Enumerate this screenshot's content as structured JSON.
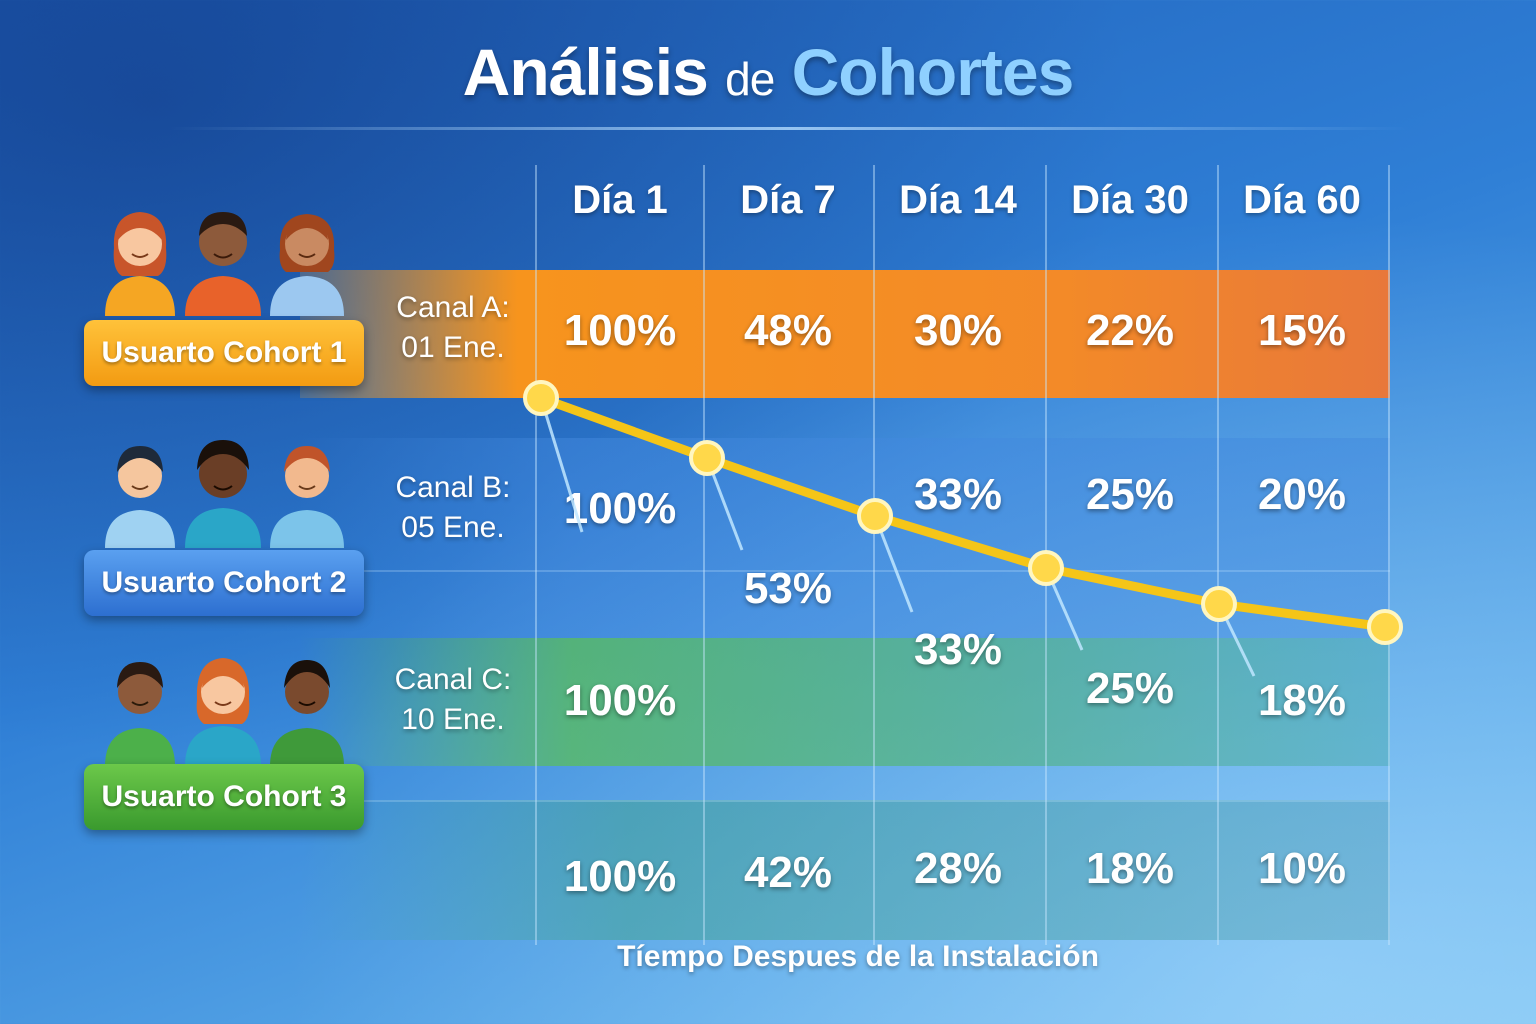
{
  "title": {
    "part1": "Análisis",
    "part2": "de",
    "part3": "Cohortes"
  },
  "columns": [
    "Día 1",
    "Día 7",
    "Día 14",
    "Día 30",
    "Día 60"
  ],
  "cohorts": [
    {
      "tag": "Usuarto Cohort 1",
      "channel": "Canal A:",
      "date": "01 Ene.",
      "color": "#f7941d"
    },
    {
      "tag": "Usuarto Cohort 2",
      "channel": "Canal B:",
      "date": "05 Ene.",
      "color": "#3b82e0"
    },
    {
      "tag": "Usuarto Cohort 3",
      "channel": "Canal C:",
      "date": "10 Ene.",
      "color": "#4caf3a"
    }
  ],
  "grid": {
    "row1": [
      "100%",
      "48%",
      "30%",
      "22%",
      "15%"
    ],
    "row2a": [
      "100%",
      "",
      "33%",
      "25%",
      "20%"
    ],
    "row2b": [
      "",
      "53%",
      "33%",
      "25%",
      "18%"
    ],
    "row3": [
      "100%",
      "",
      "",
      "",
      ""
    ],
    "row4": [
      "100%",
      "42%",
      "28%",
      "18%",
      "10%"
    ]
  },
  "xlabel": "Tíempo Despues de la Instalación",
  "chart_data": {
    "type": "table",
    "title": "Análisis de Cohortes",
    "xlabel": "Tíempo Despues de la Instalación",
    "categories": [
      "Día 1",
      "Día 7",
      "Día 14",
      "Día 30",
      "Día 60"
    ],
    "series": [
      {
        "name": "Usuarto Cohort 1",
        "values": [
          100,
          48,
          30,
          22,
          15
        ]
      },
      {
        "name": "Usuarto Cohort 2",
        "values": [
          100,
          53,
          33,
          25,
          20
        ]
      },
      {
        "name": "Usuarto Cohort 3",
        "values": [
          100,
          null,
          33,
          25,
          18
        ]
      },
      {
        "values": [
          100,
          42,
          28,
          18,
          10
        ]
      }
    ],
    "trend_line": {
      "color": "#f5c518",
      "points": 6
    }
  }
}
